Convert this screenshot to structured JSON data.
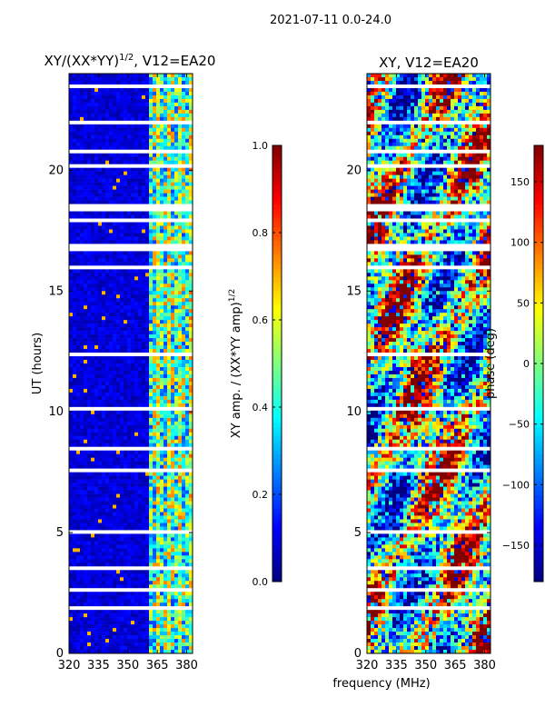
{
  "suptitle": "2021-07-11 0.0-24.0",
  "colors": {
    "background": "#ffffff",
    "gap": "#ffffff",
    "axis": "#000000",
    "jet": [
      "#00007f",
      "#0000ff",
      "#007fff",
      "#00ffff",
      "#7fff7f",
      "#ffff00",
      "#ff7f00",
      "#ff0000",
      "#7f0000"
    ]
  },
  "chart_data": [
    {
      "type": "heatmap",
      "id": "amp",
      "title_main": "XY/(XX*YY)",
      "title_exp": "1/2",
      "title_suffix": ", V12=EA20",
      "xlabel": "",
      "ylabel": "UT (hours)",
      "xlim": [
        320,
        383
      ],
      "ylim": [
        0,
        24
      ],
      "xticks": [
        320,
        335,
        350,
        365,
        380
      ],
      "yticks": [
        0,
        5,
        10,
        15,
        20
      ],
      "bright_band_start_mhz": 360,
      "colorbar": {
        "label_main": "XY amp. / (XX*YY amp)",
        "label_exp": "1/2",
        "range": [
          0.0,
          1.0
        ],
        "ticks": [
          0.0,
          0.2,
          0.4,
          0.6,
          0.8,
          1.0
        ],
        "tick_labels": [
          "0.0",
          "0.2",
          "0.4",
          "0.6",
          "0.8",
          "1.0"
        ]
      }
    },
    {
      "type": "heatmap",
      "id": "phase",
      "title_main": "XY, V12=EA20",
      "xlabel": "frequency (MHz)",
      "ylabel": "",
      "xlim": [
        320,
        383
      ],
      "ylim": [
        0,
        24
      ],
      "xticks": [
        320,
        335,
        350,
        365,
        380
      ],
      "yticks": [
        0,
        5,
        10,
        15,
        20
      ],
      "colorbar": {
        "label_main": "phase (deg)",
        "range": [
          -180,
          180
        ],
        "ticks": [
          -150,
          -100,
          -50,
          0,
          50,
          100,
          150
        ],
        "tick_labels": [
          "−150",
          "−100",
          "−50",
          "0",
          "50",
          "100",
          "150"
        ]
      }
    }
  ],
  "flagged_hours": [
    [
      0.25,
      0.35
    ],
    [
      1.45,
      1.55
    ],
    [
      1.85,
      1.95
    ],
    [
      2.6,
      2.7
    ],
    [
      3.45,
      3.55
    ],
    [
      5.0,
      5.06
    ],
    [
      7.5,
      7.7
    ],
    [
      8.4,
      8.5
    ],
    [
      10.1,
      10.18
    ],
    [
      12.3,
      12.5
    ],
    [
      13.9,
      14.0
    ],
    [
      15.9,
      16.0
    ],
    [
      16.6,
      17.0
    ],
    [
      17.85,
      18.0
    ],
    [
      18.3,
      18.6
    ],
    [
      20.1,
      20.2
    ],
    [
      20.7,
      20.85
    ],
    [
      21.9,
      22.0
    ],
    [
      22.75,
      22.85
    ],
    [
      23.4,
      23.5
    ]
  ]
}
